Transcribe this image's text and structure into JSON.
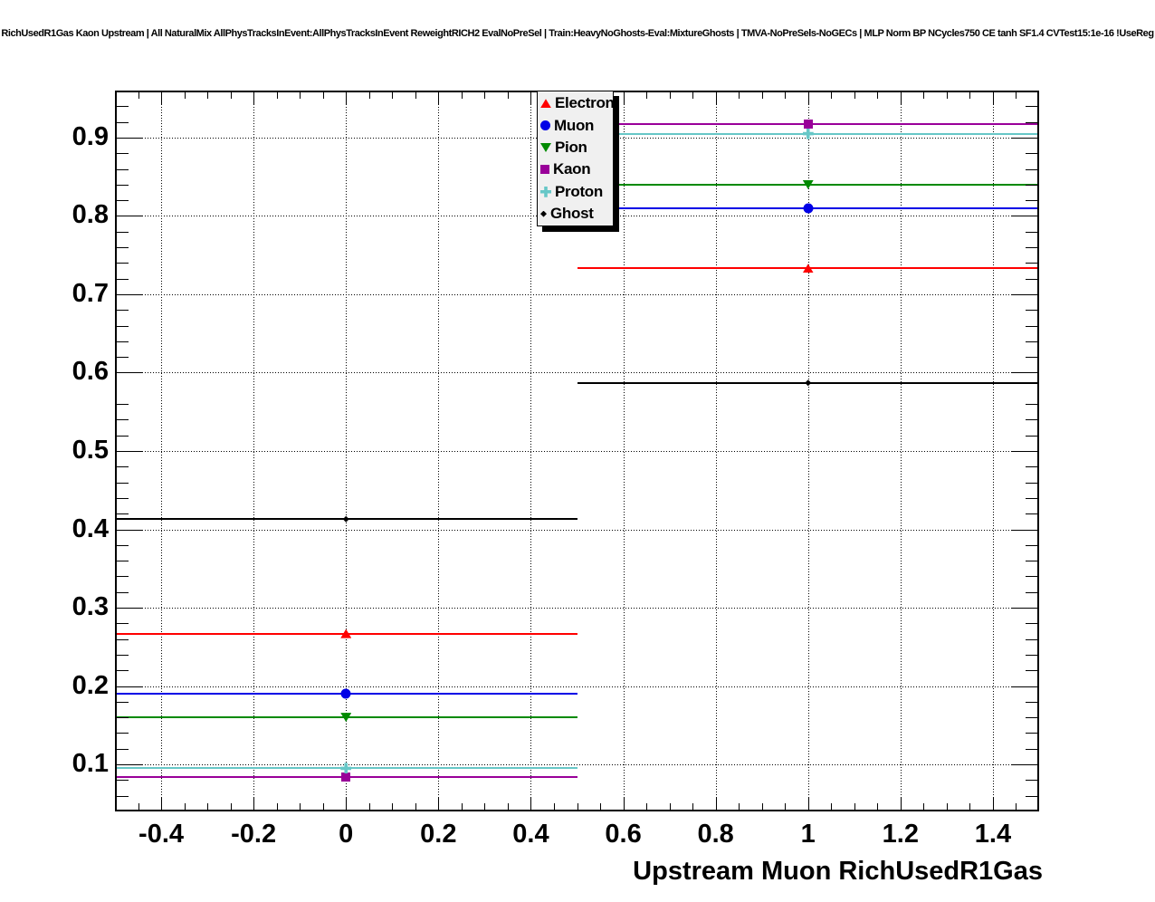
{
  "title": "RichUsedR1Gas Kaon Upstream | All NaturalMix AllPhysTracksInEvent:AllPhysTracksInEvent ReweightRICH2 EvalNoPreSel | Train:HeavyNoGhosts-Eval:MixtureGhosts | TMVA-NoPreSels-NoGECs | MLP Norm BP NCycles750 CE tanh SF1.4 CVTest15:1e-16 !UseReg",
  "chart_data": {
    "type": "scatter",
    "title": "RichUsedR1Gas Kaon Upstream | All NaturalMix AllPhysTracksInEvent:AllPhysTracksInEvent ReweightRICH2 EvalNoPreSel | Train:HeavyNoGhosts-Eval:MixtureGhosts | TMVA-NoPreSels-NoGECs | MLP Norm BP NCycles750 CE tanh SF1.4 CVTest15:1e-16 !UseReg",
    "xlabel": "Upstream Muon RichUsedR1Gas",
    "ylabel": "",
    "xlim": [
      -0.5,
      1.5
    ],
    "ylim": [
      0.04,
      0.96
    ],
    "x_major_ticks": [
      -0.4,
      -0.2,
      0,
      0.2,
      0.4,
      0.6,
      0.8,
      1,
      1.2,
      1.4
    ],
    "x_tick_labels": [
      "-0.4",
      "-0.2",
      "0",
      "0.2",
      "0.4",
      "0.6",
      "0.8",
      "1",
      "1.2",
      "1.4"
    ],
    "x_minor_step": 0.05,
    "y_major_ticks": [
      0.1,
      0.2,
      0.3,
      0.4,
      0.5,
      0.6,
      0.7,
      0.8,
      0.9
    ],
    "y_tick_labels": [
      "0.1",
      "0.2",
      "0.3",
      "0.4",
      "0.5",
      "0.6",
      "0.7",
      "0.8",
      "0.9"
    ],
    "y_minor_step": 0.02,
    "grid": "dotted-black-at-major-ticks-both-axes",
    "legend_position": "top-center-inside",
    "x": [
      0,
      1
    ],
    "bin_half_width": 0.5,
    "series": [
      {
        "name": "Electron",
        "color": "#ff0000",
        "marker": "triangle-up",
        "values": [
          0.267,
          0.733
        ]
      },
      {
        "name": "Muon",
        "color": "#0000e6",
        "marker": "circle",
        "values": [
          0.19,
          0.81
        ]
      },
      {
        "name": "Pion",
        "color": "#008a00",
        "marker": "triangle-down",
        "values": [
          0.16,
          0.84
        ]
      },
      {
        "name": "Kaon",
        "color": "#990099",
        "marker": "square",
        "values": [
          0.084,
          0.917
        ]
      },
      {
        "name": "Proton",
        "color": "#66c7c7",
        "marker": "cross",
        "values": [
          0.095,
          0.905
        ]
      },
      {
        "name": "Ghost",
        "color": "#000000",
        "marker": "diamond",
        "values": [
          0.413,
          0.587
        ]
      }
    ]
  }
}
